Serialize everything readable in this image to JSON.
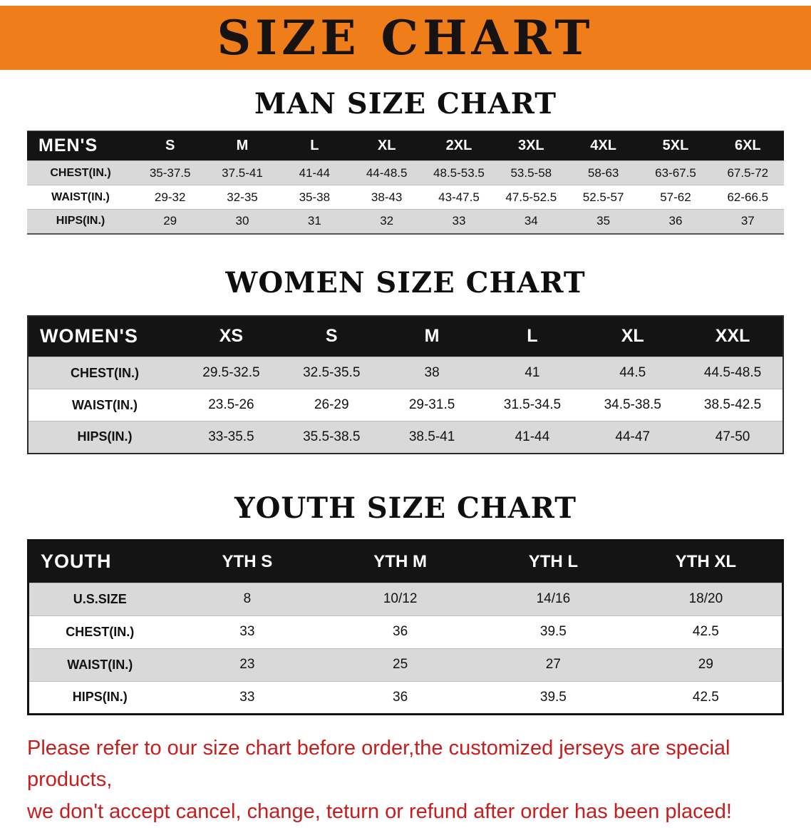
{
  "banner": {
    "title": "SIZE CHART"
  },
  "colors": {
    "banner_bg": "#ef7d1a",
    "table_header_bg": "#141414",
    "row_stripe": "#d9d9d9",
    "disclaimer_red": "#c81d1d"
  },
  "sections": [
    {
      "heading": "MAN SIZE CHART",
      "table": {
        "header": [
          "MEN'S",
          "S",
          "M",
          "L",
          "XL",
          "2XL",
          "3XL",
          "4XL",
          "5XL",
          "6XL"
        ],
        "rows": [
          [
            "CHEST(IN.)",
            "35-37.5",
            "37.5-41",
            "41-44",
            "44-48.5",
            "48.5-53.5",
            "53.5-58",
            "58-63",
            "63-67.5",
            "67.5-72"
          ],
          [
            "WAIST(IN.)",
            "29-32",
            "32-35",
            "35-38",
            "38-43",
            "43-47.5",
            "47.5-52.5",
            "52.5-57",
            "57-62",
            "62-66.5"
          ],
          [
            "HIPS(IN.)",
            "29",
            "30",
            "31",
            "32",
            "33",
            "34",
            "35",
            "36",
            "37"
          ]
        ]
      }
    },
    {
      "heading": "WOMEN SIZE CHART",
      "table": {
        "header": [
          "WOMEN'S",
          "XS",
          "S",
          "M",
          "L",
          "XL",
          "XXL"
        ],
        "rows": [
          [
            "CHEST(IN.)",
            "29.5-32.5",
            "32.5-35.5",
            "38",
            "41",
            "44.5",
            "44.5-48.5"
          ],
          [
            "WAIST(IN.)",
            "23.5-26",
            "26-29",
            "29-31.5",
            "31.5-34.5",
            "34.5-38.5",
            "38.5-42.5"
          ],
          [
            "HIPS(IN.)",
            "33-35.5",
            "35.5-38.5",
            "38.5-41",
            "41-44",
            "44-47",
            "47-50"
          ]
        ]
      }
    },
    {
      "heading": "YOUTH SIZE CHART",
      "table": {
        "header": [
          "YOUTH",
          "YTH S",
          "YTH M",
          "YTH L",
          "YTH XL"
        ],
        "rows": [
          [
            "U.S.SIZE",
            "8",
            "10/12",
            "14/16",
            "18/20"
          ],
          [
            "CHEST(IN.)",
            "33",
            "36",
            "39.5",
            "42.5"
          ],
          [
            "WAIST(IN.)",
            "23",
            "25",
            "27",
            "29"
          ],
          [
            "HIPS(IN.)",
            "33",
            "36",
            "39.5",
            "42.5"
          ]
        ]
      }
    }
  ],
  "disclaimer": {
    "line1": "Please refer to our size chart before order,the customized jerseys are special products,",
    "line2": "we don't accept cancel, change, teturn or refund after order has been placed!"
  }
}
